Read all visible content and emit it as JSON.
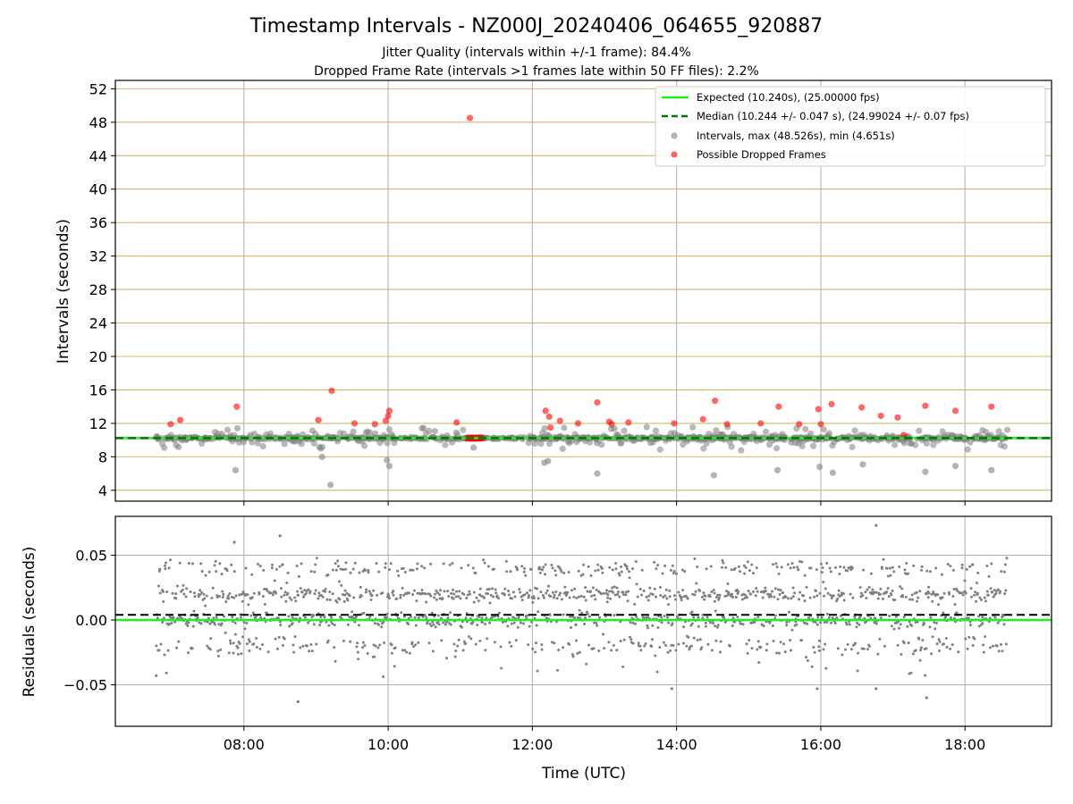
{
  "title": "Timestamp Intervals - NZ000J_20240406_064655_920887",
  "subtitle_lines": [
    "Jitter Quality (intervals within +/-1 frame): 84.4%",
    "Dropped Frame Rate (intervals >1 frames late within 50 FF files): 2.2%"
  ],
  "colors": {
    "expected": "#22ee22",
    "median": "#007700",
    "intervals": "#808080",
    "dropped": "#ff0000",
    "grid": "#b0b0b0",
    "tier_lines": "#d2b86a"
  },
  "chart_data": [
    {
      "type": "scatter",
      "panel": "intervals",
      "ylabel": "Intervals (seconds)",
      "ylim": [
        2.7,
        53
      ],
      "yticks": [
        4,
        8,
        12,
        16,
        20,
        24,
        28,
        32,
        36,
        40,
        44,
        48,
        52
      ],
      "xlim": [
        "06:13",
        "19:12"
      ],
      "grid": "vertical gridlines at hour ticks; horizontal golden lines at each y tick",
      "legend_position": "top-right",
      "legend": [
        "Expected (10.240s), (25.00000 fps)",
        "Median (10.244 +/- 0.047 s), (24.99024 +/- 0.07 fps)",
        "Intervals, max (48.526s), min (4.651s)",
        "Possible Dropped Frames"
      ],
      "expected_value": 10.24,
      "median_value": 10.244,
      "x_range_of_data": [
        "06:47",
        "18:35"
      ],
      "dropped_frame_points": [
        {
          "x": "06:59",
          "y": 11.9
        },
        {
          "x": "07:07",
          "y": 12.4
        },
        {
          "x": "07:54",
          "y": 14.0
        },
        {
          "x": "09:02",
          "y": 12.4
        },
        {
          "x": "09:13",
          "y": 15.9
        },
        {
          "x": "09:32",
          "y": 12.0
        },
        {
          "x": "09:49",
          "y": 11.9
        },
        {
          "x": "09:58",
          "y": 12.3
        },
        {
          "x": "10:00",
          "y": 12.9
        },
        {
          "x": "10:01",
          "y": 13.5
        },
        {
          "x": "10:57",
          "y": 12.1
        },
        {
          "x": "11:08",
          "y": 48.5
        },
        {
          "x": "12:11",
          "y": 13.5
        },
        {
          "x": "12:14",
          "y": 12.8
        },
        {
          "x": "12:15",
          "y": 11.5
        },
        {
          "x": "12:23",
          "y": 12.3
        },
        {
          "x": "12:38",
          "y": 12.0
        },
        {
          "x": "12:54",
          "y": 14.5
        },
        {
          "x": "13:04",
          "y": 12.2
        },
        {
          "x": "13:06",
          "y": 11.9
        },
        {
          "x": "13:20",
          "y": 12.1
        },
        {
          "x": "13:58",
          "y": 12.0
        },
        {
          "x": "14:22",
          "y": 12.5
        },
        {
          "x": "14:32",
          "y": 14.7
        },
        {
          "x": "14:42",
          "y": 11.9
        },
        {
          "x": "15:10",
          "y": 12.0
        },
        {
          "x": "15:25",
          "y": 14.0
        },
        {
          "x": "15:42",
          "y": 11.9
        },
        {
          "x": "15:58",
          "y": 13.7
        },
        {
          "x": "16:00",
          "y": 11.9
        },
        {
          "x": "16:09",
          "y": 14.3
        },
        {
          "x": "16:34",
          "y": 13.9
        },
        {
          "x": "16:50",
          "y": 12.9
        },
        {
          "x": "17:04",
          "y": 12.7
        },
        {
          "x": "17:09",
          "y": 10.6
        },
        {
          "x": "17:27",
          "y": 14.1
        },
        {
          "x": "17:52",
          "y": 13.5
        },
        {
          "x": "18:22",
          "y": 14.0
        }
      ],
      "dropped_frame_cluster": {
        "x_from": "11:06",
        "x_to": "11:18",
        "y": 10.24
      },
      "interval_outliers": [
        {
          "x": "07:53",
          "y": 6.4
        },
        {
          "x": "09:05",
          "y": 8.0
        },
        {
          "x": "09:12",
          "y": 4.65
        },
        {
          "x": "09:59",
          "y": 7.6
        },
        {
          "x": "10:01",
          "y": 6.9
        },
        {
          "x": "11:11",
          "y": 9.1
        },
        {
          "x": "12:10",
          "y": 7.3
        },
        {
          "x": "12:13",
          "y": 7.5
        },
        {
          "x": "12:54",
          "y": 6.0
        },
        {
          "x": "14:31",
          "y": 5.8
        },
        {
          "x": "15:24",
          "y": 6.4
        },
        {
          "x": "15:59",
          "y": 6.8
        },
        {
          "x": "16:10",
          "y": 6.1
        },
        {
          "x": "16:35",
          "y": 7.1
        },
        {
          "x": "17:27",
          "y": 6.2
        },
        {
          "x": "17:52",
          "y": 6.9
        },
        {
          "x": "18:22",
          "y": 6.4
        }
      ]
    },
    {
      "type": "scatter",
      "panel": "residuals",
      "ylabel": "Residuals (seconds)",
      "xlabel": "Time (UTC)",
      "ylim": [
        -0.082,
        0.08
      ],
      "yticks": [
        0.05,
        0.0,
        -0.05
      ],
      "ytick_labels": [
        "0.05",
        "0.00",
        "−0.05"
      ],
      "xticks": [
        "08:00",
        "10:00",
        "12:00",
        "14:00",
        "16:00",
        "18:00"
      ],
      "xlim": [
        "06:13",
        "19:12"
      ],
      "grid": "on",
      "expected_value": 0.0,
      "median_value": 0.004,
      "x_range_of_data": [
        "06:47",
        "18:35"
      ],
      "residual_bands": [
        0.0,
        0.02,
        0.04,
        -0.02
      ],
      "residual_extremes": [
        {
          "x": "06:47",
          "y": -0.043
        },
        {
          "x": "07:52",
          "y": 0.06
        },
        {
          "x": "08:30",
          "y": 0.065
        },
        {
          "x": "08:45",
          "y": -0.063
        },
        {
          "x": "13:56",
          "y": -0.053
        },
        {
          "x": "15:57",
          "y": -0.053
        },
        {
          "x": "16:46",
          "y": 0.073
        },
        {
          "x": "16:46",
          "y": -0.053
        },
        {
          "x": "17:28",
          "y": -0.06
        }
      ]
    }
  ]
}
